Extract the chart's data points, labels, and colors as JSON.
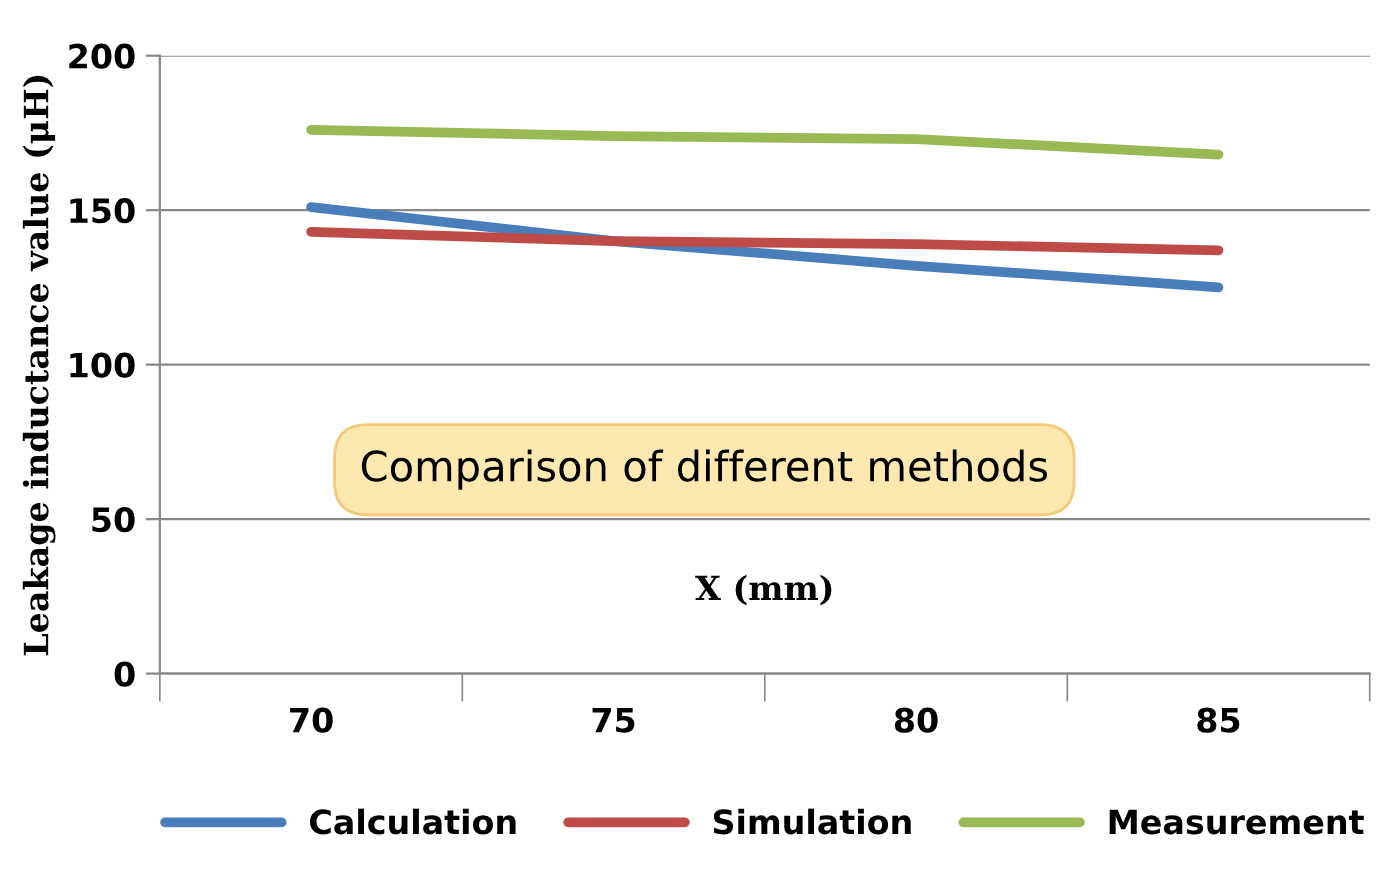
{
  "chart_data": {
    "type": "line",
    "title": "Comparison of different methods",
    "xlabel": "X (mm)",
    "ylabel": "Leakage inductance value (μH)",
    "categories": [
      "70",
      "75",
      "80",
      "85"
    ],
    "series": [
      {
        "name": "Calculation",
        "color": "#4a7ebb",
        "values": [
          151,
          140,
          132,
          125
        ]
      },
      {
        "name": "Simulation",
        "color": "#be4b48",
        "values": [
          143,
          140,
          139,
          137
        ]
      },
      {
        "name": "Measurement",
        "color": "#98b954",
        "values": [
          176,
          174,
          173,
          168
        ]
      }
    ],
    "ylim": [
      0,
      200
    ],
    "yticks": [
      0,
      50,
      100,
      150,
      200
    ],
    "grid": "y",
    "legend": "bottom",
    "marker": "none",
    "line_style": "solid"
  }
}
